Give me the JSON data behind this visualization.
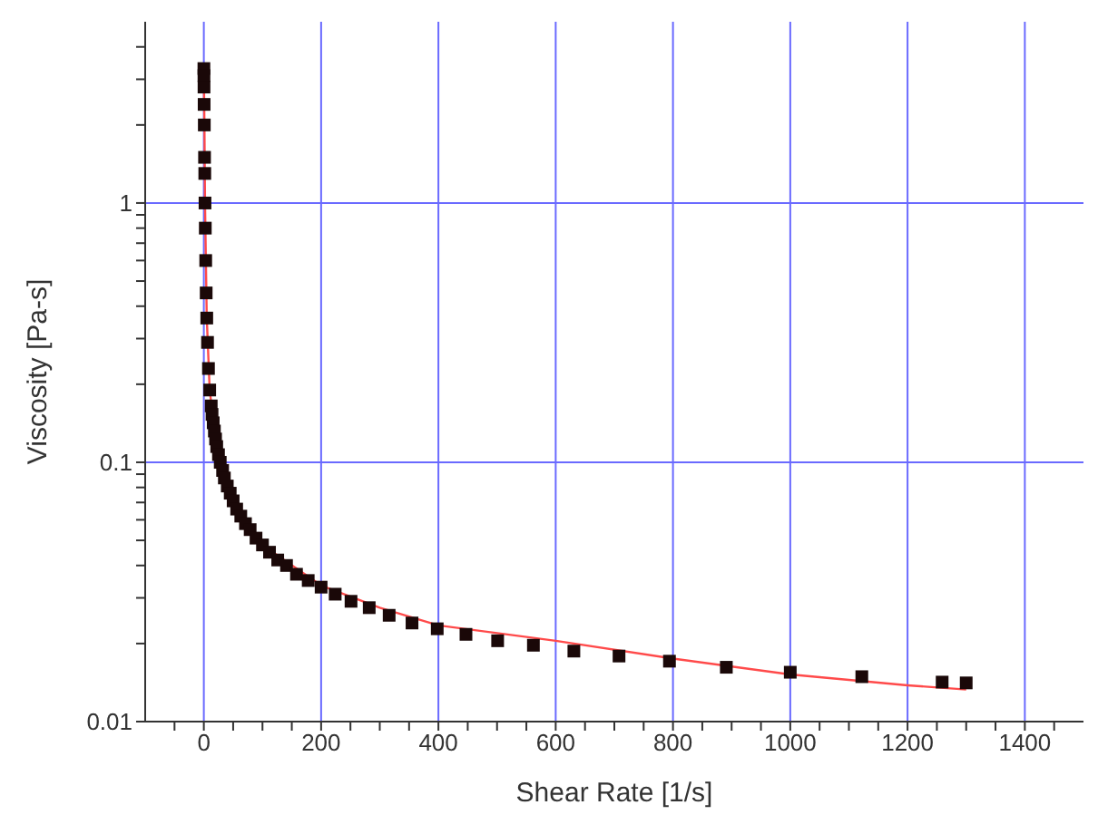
{
  "chart_data": {
    "type": "scatter",
    "xlabel": "Shear Rate [1/s]",
    "ylabel": "Viscosity [Pa-s]",
    "log": "y",
    "grid": true,
    "xlim": [
      -100,
      1500
    ],
    "xticks": [
      {
        "value": -50,
        "label": null
      },
      0,
      {
        "value": 50,
        "label": null
      },
      {
        "value": 100,
        "label": null
      },
      {
        "value": 150,
        "label": null
      },
      200,
      {
        "value": 250,
        "label": null
      },
      {
        "value": 300,
        "label": null
      },
      {
        "value": 350,
        "label": null
      },
      400,
      {
        "value": 450,
        "label": null
      },
      {
        "value": 500,
        "label": null
      },
      {
        "value": 550,
        "label": null
      },
      600,
      {
        "value": 650,
        "label": null
      },
      {
        "value": 700,
        "label": null
      },
      {
        "value": 750,
        "label": null
      },
      800,
      {
        "value": 850,
        "label": null
      },
      {
        "value": 900,
        "label": null
      },
      {
        "value": 950,
        "label": null
      },
      1000,
      {
        "value": 1050,
        "label": null
      },
      {
        "value": 1100,
        "label": null
      },
      {
        "value": 1150,
        "label": null
      },
      1200,
      {
        "value": 1250,
        "label": null
      },
      {
        "value": 1300,
        "label": null
      },
      {
        "value": 1350,
        "label": null
      },
      1400,
      {
        "value": 1450,
        "label": null
      }
    ],
    "ylim": [
      0.01,
      5
    ],
    "yticks": [
      0.01,
      {
        "value": 0.02,
        "label": null
      },
      {
        "value": 0.03,
        "label": null
      },
      {
        "value": 0.04,
        "label": null
      },
      {
        "value": 0.05,
        "label": null
      },
      {
        "value": 0.06,
        "label": null
      },
      {
        "value": 0.07,
        "label": null
      },
      {
        "value": 0.08,
        "label": null
      },
      {
        "value": 0.09,
        "label": null
      },
      0.1,
      {
        "value": 0.2,
        "label": null
      },
      {
        "value": 0.3,
        "label": null
      },
      {
        "value": 0.4,
        "label": null
      },
      {
        "value": 0.5,
        "label": null
      },
      {
        "value": 0.6,
        "label": null
      },
      {
        "value": 0.7,
        "label": null
      },
      {
        "value": 0.8,
        "label": null
      },
      {
        "value": 0.9,
        "label": null
      },
      1,
      {
        "value": 2,
        "label": null
      },
      {
        "value": 3,
        "label": null
      },
      {
        "value": 4,
        "label": null
      }
    ],
    "series": [
      {
        "marker": "square",
        "color": "#1a0808",
        "x": [
          0.1,
          0.2,
          0.3,
          0.5,
          0.8,
          1.2,
          1.6,
          2,
          2.5,
          3.2,
          4,
          5,
          6.3,
          7.9,
          10,
          12.6,
          14,
          16,
          18,
          20,
          22,
          25,
          28,
          32,
          35,
          40,
          45,
          50,
          56,
          63,
          71,
          79,
          89,
          100,
          112,
          126,
          141,
          158,
          178,
          200,
          224,
          251,
          282,
          316,
          355,
          398,
          447,
          501,
          562,
          631,
          708,
          794,
          891,
          1000,
          1122,
          1259,
          1300
        ],
        "values": [
          3.3,
          3.1,
          2.8,
          2.4,
          2.0,
          1.5,
          1.3,
          1.0,
          0.8,
          0.6,
          0.45,
          0.36,
          0.29,
          0.23,
          0.19,
          0.165,
          0.153,
          0.142,
          0.132,
          0.123,
          0.115,
          0.107,
          0.1,
          0.093,
          0.087,
          0.081,
          0.076,
          0.071,
          0.066,
          0.062,
          0.058,
          0.055,
          0.051,
          0.048,
          0.045,
          0.042,
          0.04,
          0.037,
          0.035,
          0.033,
          0.031,
          0.0291,
          0.0275,
          0.0257,
          0.024,
          0.0228,
          0.0217,
          0.0205,
          0.0197,
          0.0187,
          0.0179,
          0.0171,
          0.0162,
          0.0155,
          0.0149,
          0.0142,
          0.0141
        ]
      },
      {
        "type": "line",
        "color": "#ff4a4a",
        "x": [
          0.1,
          0.5,
          1,
          2,
          5,
          10,
          20,
          50,
          100,
          200,
          300,
          400,
          600,
          800,
          1000,
          1200,
          1300
        ],
        "values": [
          3.4,
          2.5,
          2.0,
          1.0,
          0.36,
          0.19,
          0.123,
          0.071,
          0.048,
          0.0335,
          0.0275,
          0.0235,
          0.0205,
          0.0175,
          0.0152,
          0.0138,
          0.0133
        ]
      }
    ]
  }
}
